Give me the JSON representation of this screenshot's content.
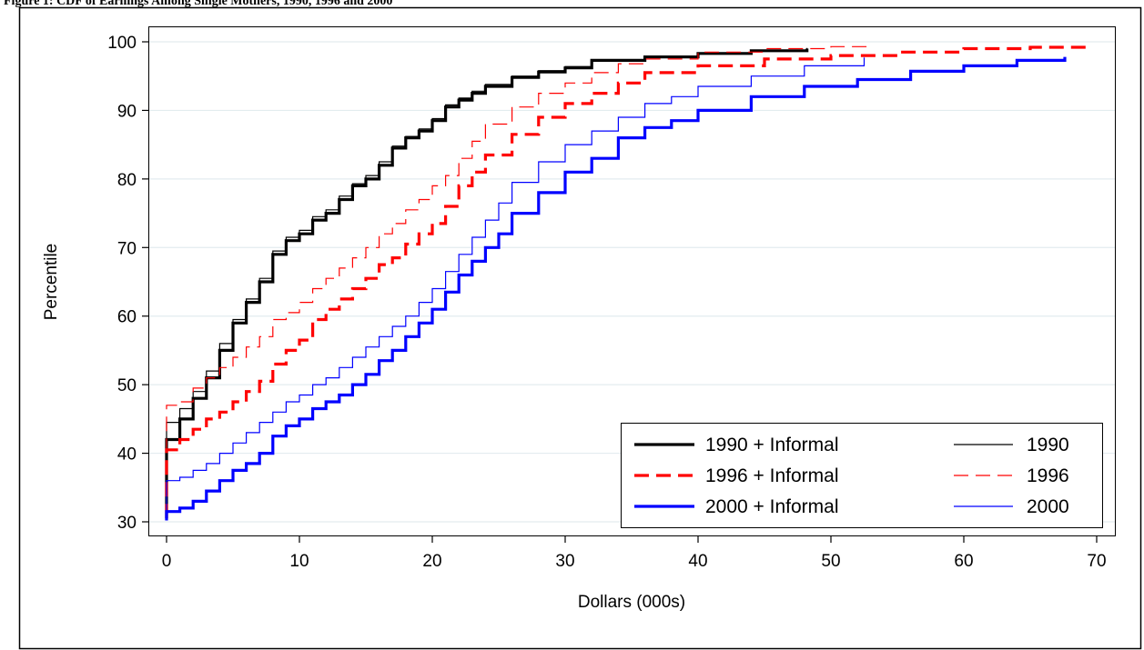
{
  "figure": {
    "caption": "Figure 1: CDF of Earnings Among Single Mothers, 1990, 1996 and 2000"
  },
  "chart_data": {
    "type": "line",
    "title": "",
    "xlabel": "Dollars (000s)",
    "ylabel": "Percentile",
    "xlim": [
      0,
      70
    ],
    "ylim": [
      30,
      100
    ],
    "xticks": [
      "0",
      "10",
      "20",
      "30",
      "40",
      "50",
      "60",
      "70"
    ],
    "yticks": [
      "30",
      "40",
      "50",
      "60",
      "70",
      "80",
      "90",
      "100"
    ],
    "grid": "horizontal",
    "legend_position": "bottom-right",
    "series": [
      {
        "name": "1990 + Informal",
        "color": "#000000",
        "style": "solid-thick",
        "points": [
          [
            0,
            30.5
          ],
          [
            0,
            42
          ],
          [
            1,
            45
          ],
          [
            2,
            48
          ],
          [
            3,
            51
          ],
          [
            4,
            55
          ],
          [
            5,
            59
          ],
          [
            6,
            62
          ],
          [
            7,
            65
          ],
          [
            8,
            69
          ],
          [
            9,
            71
          ],
          [
            10,
            72
          ],
          [
            11,
            74
          ],
          [
            12,
            75
          ],
          [
            13,
            77
          ],
          [
            14,
            79
          ],
          [
            15,
            80
          ],
          [
            16,
            82
          ],
          [
            17,
            84.5
          ],
          [
            18,
            86
          ],
          [
            19,
            87
          ],
          [
            20,
            88.5
          ],
          [
            21,
            90.5
          ],
          [
            22,
            91.5
          ],
          [
            23,
            92.5
          ],
          [
            24,
            93.5
          ],
          [
            26,
            94.8
          ],
          [
            28,
            95.6
          ],
          [
            30,
            96.2
          ],
          [
            32,
            97.3
          ],
          [
            36,
            97.8
          ],
          [
            40,
            98.3
          ],
          [
            44,
            98.7
          ],
          [
            48.2,
            99
          ]
        ]
      },
      {
        "name": "1990",
        "color": "#000000",
        "style": "solid-thin",
        "points": [
          [
            0,
            30.5
          ],
          [
            0,
            44.5
          ],
          [
            1,
            46.5
          ],
          [
            2,
            49
          ],
          [
            3,
            52
          ],
          [
            4,
            56
          ],
          [
            5,
            59.5
          ],
          [
            6,
            62.5
          ],
          [
            7,
            65.5
          ],
          [
            8,
            69.5
          ],
          [
            9,
            71.5
          ],
          [
            10,
            72.5
          ],
          [
            11,
            74.5
          ],
          [
            12,
            75.5
          ],
          [
            13,
            77.5
          ],
          [
            14,
            79.3
          ],
          [
            15,
            80.5
          ],
          [
            16,
            82.5
          ],
          [
            17,
            84.8
          ],
          [
            18,
            86.2
          ],
          [
            19,
            87.3
          ],
          [
            20,
            88.8
          ],
          [
            21,
            90.8
          ],
          [
            22,
            91.8
          ],
          [
            23,
            92.8
          ],
          [
            24,
            93.8
          ],
          [
            26,
            95
          ],
          [
            28,
            95.8
          ],
          [
            30,
            96.4
          ],
          [
            32,
            97.4
          ],
          [
            36,
            97.9
          ],
          [
            40,
            98.4
          ],
          [
            44,
            98.8
          ],
          [
            48.2,
            99.1
          ]
        ]
      },
      {
        "name": "1996 + Informal",
        "color": "#ff0000",
        "style": "dashed-thick",
        "points": [
          [
            0,
            30.5
          ],
          [
            0,
            40.5
          ],
          [
            1,
            42
          ],
          [
            2,
            43.5
          ],
          [
            3,
            45
          ],
          [
            4,
            46
          ],
          [
            5,
            47.5
          ],
          [
            6,
            49
          ],
          [
            7,
            50.5
          ],
          [
            8,
            53
          ],
          [
            9,
            55
          ],
          [
            10,
            56.5
          ],
          [
            11,
            59.5
          ],
          [
            12,
            61
          ],
          [
            13,
            62.5
          ],
          [
            14,
            64
          ],
          [
            15,
            65.5
          ],
          [
            16,
            67.5
          ],
          [
            17,
            68.5
          ],
          [
            18,
            70.5
          ],
          [
            19,
            72
          ],
          [
            20,
            73.5
          ],
          [
            21,
            76
          ],
          [
            22,
            79
          ],
          [
            23,
            81
          ],
          [
            24,
            83.5
          ],
          [
            26,
            86.5
          ],
          [
            28,
            89
          ],
          [
            30,
            91
          ],
          [
            32,
            92.5
          ],
          [
            34,
            94
          ],
          [
            36,
            95.5
          ],
          [
            40,
            96.5
          ],
          [
            45,
            97.5
          ],
          [
            50,
            98
          ],
          [
            55,
            98.5
          ],
          [
            60,
            99
          ],
          [
            65,
            99.2
          ],
          [
            69.3,
            99.5
          ]
        ]
      },
      {
        "name": "1996",
        "color": "#ff0000",
        "style": "dashed-thin",
        "points": [
          [
            0,
            30.5
          ],
          [
            0,
            47
          ],
          [
            1,
            47.5
          ],
          [
            2,
            49.5
          ],
          [
            3,
            51
          ],
          [
            4,
            52.5
          ],
          [
            5,
            54
          ],
          [
            6,
            55.5
          ],
          [
            7,
            57
          ],
          [
            8,
            59.5
          ],
          [
            9,
            60.5
          ],
          [
            10,
            62
          ],
          [
            11,
            64
          ],
          [
            12,
            65.5
          ],
          [
            13,
            67
          ],
          [
            14,
            68.5
          ],
          [
            15,
            70
          ],
          [
            16,
            72
          ],
          [
            17,
            73.5
          ],
          [
            18,
            75.5
          ],
          [
            19,
            77
          ],
          [
            20,
            79
          ],
          [
            21,
            80.5
          ],
          [
            22,
            83
          ],
          [
            23,
            85.5
          ],
          [
            24,
            88
          ],
          [
            26,
            90.5
          ],
          [
            28,
            92.5
          ],
          [
            30,
            94
          ],
          [
            32,
            95.5
          ],
          [
            34,
            96.8
          ],
          [
            36,
            97.5
          ],
          [
            40,
            98.5
          ],
          [
            45,
            99
          ],
          [
            50,
            99.3
          ],
          [
            52.8,
            99.4
          ]
        ]
      },
      {
        "name": "2000 + Informal",
        "color": "#0000ff",
        "style": "solid-thick",
        "points": [
          [
            0,
            30.2
          ],
          [
            0,
            31.5
          ],
          [
            1,
            32
          ],
          [
            2,
            33
          ],
          [
            3,
            34.5
          ],
          [
            4,
            36
          ],
          [
            5,
            37.5
          ],
          [
            6,
            38.5
          ],
          [
            7,
            40
          ],
          [
            8,
            42.5
          ],
          [
            9,
            44
          ],
          [
            10,
            45
          ],
          [
            11,
            46.5
          ],
          [
            12,
            47.5
          ],
          [
            13,
            48.5
          ],
          [
            14,
            50
          ],
          [
            15,
            51.5
          ],
          [
            16,
            53.5
          ],
          [
            17,
            55
          ],
          [
            18,
            57
          ],
          [
            19,
            59
          ],
          [
            20,
            61
          ],
          [
            21,
            63.5
          ],
          [
            22,
            66
          ],
          [
            23,
            68
          ],
          [
            24,
            70
          ],
          [
            25,
            72
          ],
          [
            26,
            75
          ],
          [
            28,
            78
          ],
          [
            30,
            81
          ],
          [
            32,
            83
          ],
          [
            34,
            86
          ],
          [
            36,
            87.5
          ],
          [
            38,
            88.5
          ],
          [
            40,
            90
          ],
          [
            44,
            92
          ],
          [
            48,
            93.5
          ],
          [
            52,
            94.5
          ],
          [
            56,
            95.7
          ],
          [
            60,
            96.5
          ],
          [
            64,
            97.3
          ],
          [
            67.6,
            97.8
          ]
        ]
      },
      {
        "name": "2000",
        "color": "#0000ff",
        "style": "solid-thin",
        "points": [
          [
            0,
            30.2
          ],
          [
            0,
            36
          ],
          [
            1,
            36.5
          ],
          [
            2,
            37.5
          ],
          [
            3,
            38.5
          ],
          [
            4,
            40
          ],
          [
            5,
            41.5
          ],
          [
            6,
            43
          ],
          [
            7,
            44.5
          ],
          [
            8,
            46
          ],
          [
            9,
            47.5
          ],
          [
            10,
            48.5
          ],
          [
            11,
            50
          ],
          [
            12,
            51
          ],
          [
            13,
            52.5
          ],
          [
            14,
            54
          ],
          [
            15,
            55.5
          ],
          [
            16,
            57
          ],
          [
            17,
            58.5
          ],
          [
            18,
            60
          ],
          [
            19,
            62
          ],
          [
            20,
            64
          ],
          [
            21,
            66.5
          ],
          [
            22,
            69
          ],
          [
            23,
            71.5
          ],
          [
            24,
            74
          ],
          [
            25,
            76.5
          ],
          [
            26,
            79.5
          ],
          [
            28,
            82.5
          ],
          [
            30,
            85
          ],
          [
            32,
            87
          ],
          [
            34,
            89
          ],
          [
            36,
            91
          ],
          [
            38,
            92
          ],
          [
            40,
            93.5
          ],
          [
            44,
            95
          ],
          [
            48,
            96.5
          ],
          [
            52.5,
            97.7
          ]
        ]
      }
    ]
  }
}
